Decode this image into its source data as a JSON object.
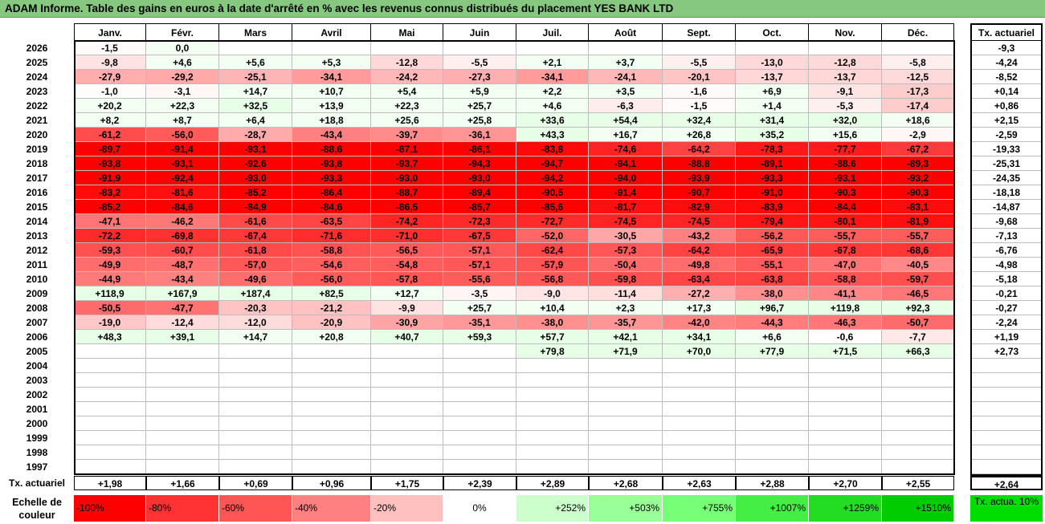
{
  "title": "ADAM Informe. Table des gains en euros à la date d'arrêté en % avec les revenus connus distribués du placement YES BANK LTD",
  "chart_data": {
    "type": "heatmap",
    "months": [
      "Janv.",
      "Févr.",
      "Mars",
      "Avril",
      "Mai",
      "Juin",
      "Juil.",
      "Août",
      "Sept.",
      "Oct.",
      "Nov.",
      "Déc."
    ],
    "annual_header": "Tx. actuariel",
    "rows": [
      {
        "year": "2026",
        "values": [
          "-1,5",
          "0,0",
          "",
          "",
          "",
          "",
          "",
          "",
          "",
          "",
          "",
          ""
        ],
        "annual": "-9,3"
      },
      {
        "year": "2025",
        "values": [
          "-9,8",
          "+4,6",
          "+5,6",
          "+5,3",
          "-12,8",
          "-5,5",
          "+2,1",
          "+3,7",
          "-5,5",
          "-13,0",
          "-12,8",
          "-5,8"
        ],
        "annual": "-4,24"
      },
      {
        "year": "2024",
        "values": [
          "-27,9",
          "-29,2",
          "-25,1",
          "-34,1",
          "-24,2",
          "-27,3",
          "-34,1",
          "-24,1",
          "-20,1",
          "-13,7",
          "-13,7",
          "-12,5"
        ],
        "annual": "-8,52"
      },
      {
        "year": "2023",
        "values": [
          "-1,0",
          "-3,1",
          "+14,7",
          "+10,7",
          "+5,4",
          "+5,9",
          "+2,2",
          "+3,5",
          "-1,6",
          "+6,9",
          "-9,1",
          "-17,3"
        ],
        "annual": "+0,14"
      },
      {
        "year": "2022",
        "values": [
          "+20,2",
          "+22,3",
          "+32,5",
          "+13,9",
          "+22,3",
          "+25,7",
          "+4,6",
          "-6,3",
          "-1,5",
          "+1,4",
          "-5,3",
          "-17,4"
        ],
        "annual": "+0,86"
      },
      {
        "year": "2021",
        "values": [
          "+8,2",
          "+8,7",
          "+6,4",
          "+18,8",
          "+25,6",
          "+25,8",
          "+33,6",
          "+54,4",
          "+32,4",
          "+31,4",
          "+32,0",
          "+18,6"
        ],
        "annual": "+2,15"
      },
      {
        "year": "2020",
        "values": [
          "-61,2",
          "-56,0",
          "-28,7",
          "-43,4",
          "-39,7",
          "-36,1",
          "+43,3",
          "+16,7",
          "+26,8",
          "+35,2",
          "+15,6",
          "-2,9"
        ],
        "annual": "-2,59"
      },
      {
        "year": "2019",
        "values": [
          "-89,7",
          "-91,4",
          "-93,1",
          "-88,6",
          "-87,1",
          "-86,1",
          "-83,8",
          "-74,6",
          "-64,2",
          "-78,3",
          "-77,7",
          "-67,2"
        ],
        "annual": "-19,33"
      },
      {
        "year": "2018",
        "values": [
          "-93,8",
          "-93,1",
          "-92,6",
          "-93,8",
          "-93,7",
          "-94,3",
          "-94,7",
          "-94,1",
          "-88,8",
          "-89,1",
          "-88,6",
          "-89,3"
        ],
        "annual": "-25,31"
      },
      {
        "year": "2017",
        "values": [
          "-91,9",
          "-92,4",
          "-93,0",
          "-93,3",
          "-93,0",
          "-93,0",
          "-94,2",
          "-94,0",
          "-93,9",
          "-93,3",
          "-93,1",
          "-93,2"
        ],
        "annual": "-24,35"
      },
      {
        "year": "2016",
        "values": [
          "-83,2",
          "-81,6",
          "-85,2",
          "-86,4",
          "-88,7",
          "-89,4",
          "-90,5",
          "-91,4",
          "-90,7",
          "-91,0",
          "-90,3",
          "-90,3"
        ],
        "annual": "-18,18"
      },
      {
        "year": "2015",
        "values": [
          "-85,2",
          "-84,6",
          "-84,9",
          "-84,6",
          "-86,5",
          "-85,7",
          "-85,6",
          "-81,7",
          "-82,9",
          "-83,9",
          "-84,4",
          "-83,1"
        ],
        "annual": "-14,87"
      },
      {
        "year": "2014",
        "values": [
          "-47,1",
          "-46,2",
          "-61,6",
          "-63,5",
          "-74,2",
          "-72,3",
          "-72,7",
          "-74,5",
          "-74,5",
          "-79,4",
          "-80,1",
          "-81,9"
        ],
        "annual": "-9,68"
      },
      {
        "year": "2013",
        "values": [
          "-72,2",
          "-69,8",
          "-67,4",
          "-71,6",
          "-71,0",
          "-67,5",
          "-52,0",
          "-30,5",
          "-43,2",
          "-56,2",
          "-55,7",
          "-55,7"
        ],
        "annual": "-7,13"
      },
      {
        "year": "2012",
        "values": [
          "-59,3",
          "-60,7",
          "-61,8",
          "-58,8",
          "-56,5",
          "-57,1",
          "-62,4",
          "-57,3",
          "-64,2",
          "-65,9",
          "-67,8",
          "-68,6"
        ],
        "annual": "-6,76"
      },
      {
        "year": "2011",
        "values": [
          "-49,9",
          "-48,7",
          "-57,0",
          "-54,6",
          "-54,8",
          "-57,1",
          "-57,9",
          "-50,4",
          "-49,8",
          "-55,1",
          "-47,0",
          "-40,5"
        ],
        "annual": "-4,98"
      },
      {
        "year": "2010",
        "values": [
          "-44,9",
          "-43,4",
          "-49,6",
          "-56,0",
          "-57,8",
          "-55,6",
          "-56,8",
          "-59,8",
          "-63,4",
          "-63,8",
          "-58,8",
          "-59,7"
        ],
        "annual": "-5,18"
      },
      {
        "year": "2009",
        "values": [
          "+118,9",
          "+167,9",
          "+187,4",
          "+82,5",
          "+12,7",
          "-3,5",
          "-9,0",
          "-11,4",
          "-27,2",
          "-38,0",
          "-41,1",
          "-46,5"
        ],
        "annual": "-0,21"
      },
      {
        "year": "2008",
        "values": [
          "-50,5",
          "-47,7",
          "-20,3",
          "-21,2",
          "-9,9",
          "+25,7",
          "+10,4",
          "+2,3",
          "+17,3",
          "+96,7",
          "+119,8",
          "+92,3"
        ],
        "annual": "-0,27"
      },
      {
        "year": "2007",
        "values": [
          "-19,0",
          "-12,4",
          "-12,0",
          "-20,9",
          "-30,9",
          "-35,1",
          "-38,0",
          "-35,7",
          "-42,0",
          "-44,3",
          "-46,3",
          "-50,7"
        ],
        "annual": "-2,24"
      },
      {
        "year": "2006",
        "values": [
          "+48,3",
          "+39,1",
          "+14,7",
          "+20,8",
          "+40,7",
          "+59,3",
          "+57,7",
          "+42,1",
          "+34,1",
          "+6,6",
          "-0,6",
          "-7,7"
        ],
        "annual": "+1,19"
      },
      {
        "year": "2005",
        "values": [
          "",
          "",
          "",
          "",
          "",
          "",
          "+79,8",
          "+71,9",
          "+70,0",
          "+77,9",
          "+71,5",
          "+66,3"
        ],
        "annual": "+2,73"
      },
      {
        "year": "2004",
        "values": [
          "",
          "",
          "",
          "",
          "",
          "",
          "",
          "",
          "",
          "",
          "",
          ""
        ],
        "annual": ""
      },
      {
        "year": "2003",
        "values": [
          "",
          "",
          "",
          "",
          "",
          "",
          "",
          "",
          "",
          "",
          "",
          ""
        ],
        "annual": ""
      },
      {
        "year": "2002",
        "values": [
          "",
          "",
          "",
          "",
          "",
          "",
          "",
          "",
          "",
          "",
          "",
          ""
        ],
        "annual": ""
      },
      {
        "year": "2001",
        "values": [
          "",
          "",
          "",
          "",
          "",
          "",
          "",
          "",
          "",
          "",
          "",
          ""
        ],
        "annual": ""
      },
      {
        "year": "2000",
        "values": [
          "",
          "",
          "",
          "",
          "",
          "",
          "",
          "",
          "",
          "",
          "",
          ""
        ],
        "annual": ""
      },
      {
        "year": "1999",
        "values": [
          "",
          "",
          "",
          "",
          "",
          "",
          "",
          "",
          "",
          "",
          "",
          ""
        ],
        "annual": ""
      },
      {
        "year": "1998",
        "values": [
          "",
          "",
          "",
          "",
          "",
          "",
          "",
          "",
          "",
          "",
          "",
          ""
        ],
        "annual": ""
      },
      {
        "year": "1997",
        "values": [
          "",
          "",
          "",
          "",
          "",
          "",
          "",
          "",
          "",
          "",
          "",
          ""
        ],
        "annual": ""
      }
    ],
    "footer": {
      "label": "Tx. actuariel",
      "values": [
        "+1,98",
        "+1,66",
        "+0,69",
        "+0,96",
        "+1,75",
        "+2,39",
        "+2,89",
        "+2,68",
        "+2,63",
        "+2,88",
        "+2,70",
        "+2,55"
      ],
      "annual": "+2,64"
    },
    "scale": {
      "label": "Echelle de couleur",
      "items": [
        {
          "text": "-100%",
          "color": "#ff0000",
          "align": "left"
        },
        {
          "text": "-80%",
          "color": "#ff3333",
          "align": "left"
        },
        {
          "text": "-60%",
          "color": "#ff5555",
          "align": "left"
        },
        {
          "text": "-40%",
          "color": "#ff8080",
          "align": "left"
        },
        {
          "text": "-20%",
          "color": "#ffc0c0",
          "align": "left"
        },
        {
          "text": "0%",
          "color": "#ffffff",
          "align": "center"
        },
        {
          "text": "+252%",
          "color": "#ccffcc",
          "align": "right"
        },
        {
          "text": "+503%",
          "color": "#99ff99",
          "align": "right"
        },
        {
          "text": "+755%",
          "color": "#77ff77",
          "align": "right"
        },
        {
          "text": "+1007%",
          "color": "#44ee44",
          "align": "right"
        },
        {
          "text": "+1259%",
          "color": "#22dd22",
          "align": "right"
        },
        {
          "text": "+1510%",
          "color": "#00cc00",
          "align": "right"
        }
      ],
      "annual_label": "Tx. actua. 10%",
      "annual_color": "#00dd00"
    }
  }
}
